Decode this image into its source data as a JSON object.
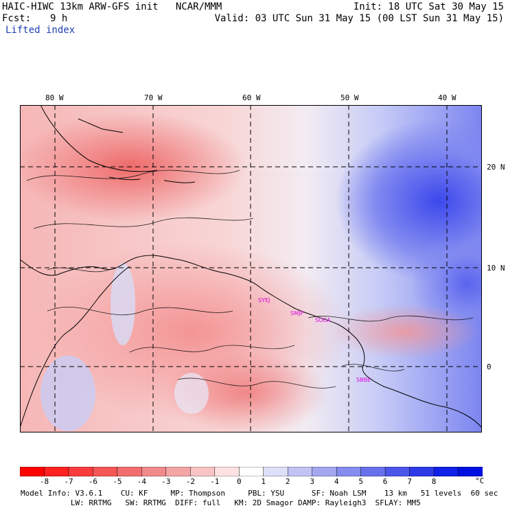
{
  "header": {
    "title_line": "HAIC-HIWC 13km ARW-GFS init   NCAR/MMM",
    "fcst_label": "Fcst:",
    "fcst_value": "9 h",
    "field_name": "Lifted index",
    "init_line": "Init: 18 UTC Sat 30 May 15",
    "valid_line": "Valid: 03 UTC Sun 31 May 15 (00 LST Sun 31 May 15)"
  },
  "map": {
    "longitude_labels": [
      "80 W",
      "70 W",
      "60 W",
      "50 W",
      "40 W"
    ],
    "latitude_labels": [
      "20 N",
      "10 N",
      "0"
    ],
    "station_labels": [
      "SYEJ",
      "SMJP",
      "SOCA",
      "SBBE"
    ],
    "colors": {
      "negative_strong": "#e83232",
      "negative_mid": "#f47c7c",
      "negative_light": "#f8c8c8",
      "neutral": "#f4eef0",
      "positive_light": "#c8ccf8",
      "positive_mid": "#7a82f0",
      "positive_strong": "#2030e8",
      "station_text": "#e000e0",
      "grid_line": "#000000"
    }
  },
  "colorbar": {
    "tick_labels": [
      "-8",
      "-7",
      "-6",
      "-5",
      "-4",
      "-3",
      "-2",
      "-1",
      "0",
      "1",
      "2",
      "3",
      "4",
      "5",
      "6",
      "7",
      "8"
    ],
    "unit": "°C",
    "colors": [
      "#ff0000",
      "#ff2020",
      "#fb3c3c",
      "#f55656",
      "#f26e6e",
      "#f18a8a",
      "#f4a6a6",
      "#f8c4c4",
      "#fde2e2",
      "#ffffff",
      "#dedff8",
      "#c1c4f4",
      "#a2a7f0",
      "#858cee",
      "#6870ec",
      "#4b55ea",
      "#2e3ae8",
      "#1020e6",
      "#0010e0"
    ]
  },
  "model_info": {
    "line1": "Model Info: V3.6.1    CU: KF     MP: Thompson     PBL: YSU      SF: Noah LSM    13 km   51 levels  60 sec",
    "line2": "           LW: RRTMG   SW: RRTMG  DIFF: full   KM: 2D Smagor DAMP: Rayleigh3  SFLAY: MM5"
  }
}
